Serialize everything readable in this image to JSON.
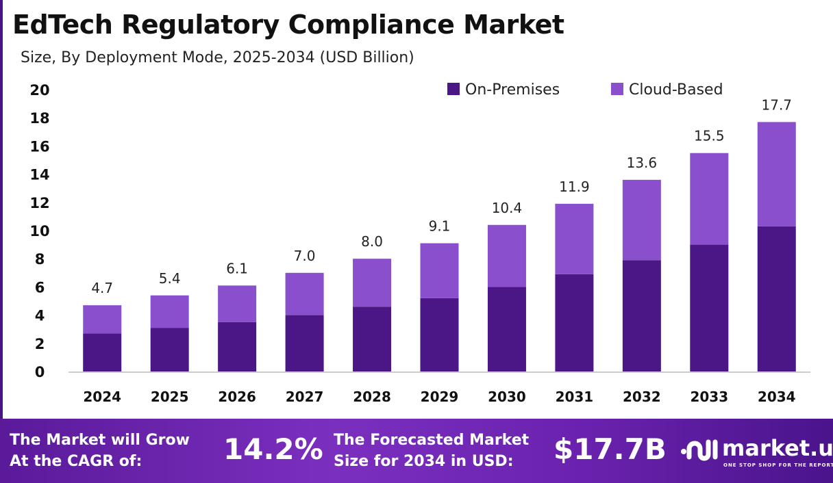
{
  "chart_data": {
    "type": "bar",
    "stacked": true,
    "title": "EdTech Regulatory Compliance Market",
    "subtitle": "Size, By Deployment Mode, 2025-2034 (USD Billion)",
    "categories": [
      "2024",
      "2025",
      "2026",
      "2027",
      "2028",
      "2029",
      "2030",
      "2031",
      "2032",
      "2033",
      "2034"
    ],
    "series": [
      {
        "name": "On-Premises",
        "color": "#4b1685",
        "values": [
          2.7,
          3.1,
          3.5,
          4.0,
          4.6,
          5.2,
          6.0,
          6.9,
          7.9,
          9.0,
          10.3
        ]
      },
      {
        "name": "Cloud-Based",
        "color": "#8a4fcc",
        "values": [
          2.0,
          2.3,
          2.6,
          3.0,
          3.4,
          3.9,
          4.4,
          5.0,
          5.7,
          6.5,
          7.4
        ]
      }
    ],
    "totals": [
      "4.7",
      "5.4",
      "6.1",
      "7.0",
      "8.0",
      "9.1",
      "10.4",
      "11.9",
      "13.6",
      "15.5",
      "17.7"
    ],
    "ylim": [
      0,
      20
    ],
    "yticks": [
      0,
      2,
      4,
      6,
      8,
      10,
      12,
      14,
      16,
      18,
      20
    ],
    "grid": false,
    "legend": "top-right"
  },
  "footer": {
    "cagr_label_1": "The Market will Grow",
    "cagr_label_2": "At the CAGR of:",
    "cagr_value": "14.2%",
    "size_label_1": "The Forecasted Market",
    "size_label_2": "Size for 2034 in USD:",
    "size_value": "$17.7B",
    "logo_name": "market.us",
    "logo_tagline": "ONE STOP SHOP FOR THE REPORTS"
  }
}
